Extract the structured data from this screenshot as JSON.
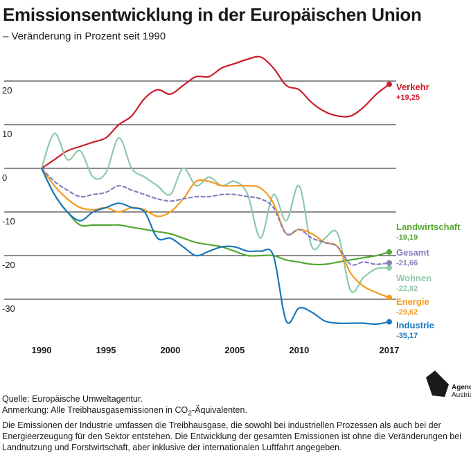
{
  "title": "Emissionsentwicklung in der Europäischen Union",
  "subtitle": "– Veränderung in Prozent seit 1990",
  "chart_data": {
    "type": "line",
    "title": "Emissionsentwicklung in der Europäischen Union",
    "subtitle": "– Veränderung in Prozent seit 1990",
    "xlabel": "",
    "ylabel": "",
    "xlim": [
      1990,
      2017
    ],
    "ylim": [
      -40,
      25
    ],
    "x_ticks": [
      "1990",
      "1995",
      "2000",
      "2005",
      "2010",
      "2017"
    ],
    "x_tick_values": [
      1990,
      1995,
      2000,
      2005,
      2010,
      2017
    ],
    "y_ticks": [
      "20",
      "10",
      "0",
      "-10",
      "-20",
      "-30"
    ],
    "y_tick_values": [
      20,
      10,
      0,
      -10,
      -20,
      -30
    ],
    "grid": true,
    "legend": "end-of-line labels",
    "series": [
      {
        "name": "Verkehr",
        "end_label": "+19,25",
        "color": "#cc1c2b",
        "dashed": false,
        "x": [
          1990,
          1991,
          1992,
          1993,
          1994,
          1995,
          1996,
          1997,
          1998,
          1999,
          2000,
          2001,
          2002,
          2003,
          2004,
          2005,
          2006,
          2007,
          2008,
          2009,
          2010,
          2011,
          2012,
          2013,
          2014,
          2015,
          2016,
          2017
        ],
        "y": [
          0,
          2,
          4,
          5,
          6,
          7,
          10,
          12,
          16,
          18,
          17,
          19,
          21,
          21,
          23,
          24,
          25,
          25.5,
          23,
          19,
          18,
          15,
          13,
          12,
          12,
          14,
          17,
          19.25
        ]
      },
      {
        "name": "Landwirtschaft",
        "end_label": "-19,19",
        "color": "#53a831",
        "dashed": false,
        "x": [
          1990,
          1991,
          1992,
          1993,
          1994,
          1995,
          1996,
          1997,
          1998,
          1999,
          2000,
          2001,
          2002,
          2003,
          2004,
          2005,
          2006,
          2007,
          2008,
          2009,
          2010,
          2011,
          2012,
          2013,
          2014,
          2015,
          2016,
          2017
        ],
        "y": [
          0,
          -6,
          -10,
          -13,
          -13,
          -13,
          -13,
          -13.5,
          -14,
          -14.5,
          -15,
          -16,
          -17,
          -17.5,
          -18,
          -19,
          -20,
          -20,
          -20,
          -21,
          -21.5,
          -22,
          -22,
          -21.5,
          -21,
          -20.5,
          -20,
          -19.19
        ]
      },
      {
        "name": "Gesamt",
        "end_label": "-21,66",
        "color": "#8480bc",
        "dashed": true,
        "x": [
          1990,
          1991,
          1992,
          1993,
          1994,
          1995,
          1996,
          1997,
          1998,
          1999,
          2000,
          2001,
          2002,
          2003,
          2004,
          2005,
          2006,
          2007,
          2008,
          2009,
          2010,
          2011,
          2012,
          2013,
          2014,
          2015,
          2016,
          2017
        ],
        "y": [
          0,
          -3,
          -5,
          -6.5,
          -6,
          -5.5,
          -4,
          -5,
          -6,
          -7,
          -7.5,
          -7,
          -6.5,
          -6.5,
          -6,
          -6,
          -6.5,
          -7,
          -9,
          -15,
          -14,
          -16,
          -17,
          -18,
          -22,
          -21.5,
          -22,
          -21.66
        ]
      },
      {
        "name": "Wohnen",
        "end_label": "-22,82",
        "color": "#8ccaaa",
        "dashed": false,
        "x": [
          1990,
          1991,
          1992,
          1993,
          1994,
          1995,
          1996,
          1997,
          1998,
          1999,
          2000,
          2001,
          2002,
          2003,
          2004,
          2005,
          2006,
          2007,
          2008,
          2009,
          2010,
          2011,
          2012,
          2013,
          2014,
          2015,
          2016,
          2017
        ],
        "y": [
          0,
          8,
          2,
          4,
          -2,
          -1,
          7,
          0,
          -2,
          -4,
          -6,
          0,
          -4,
          -2,
          -4,
          -3,
          -6,
          -16,
          -6,
          -12,
          -4,
          -18,
          -16,
          -15,
          -28,
          -25,
          -23,
          -22.82
        ]
      },
      {
        "name": "Energie",
        "end_label": "-29,62",
        "color": "#f39a1d",
        "dashed": false,
        "x": [
          1990,
          1991,
          1992,
          1993,
          1994,
          1995,
          1996,
          1997,
          1998,
          1999,
          2000,
          2001,
          2002,
          2003,
          2004,
          2005,
          2006,
          2007,
          2008,
          2009,
          2010,
          2011,
          2012,
          2013,
          2014,
          2015,
          2016,
          2017
        ],
        "y": [
          0,
          -4,
          -7,
          -9,
          -9.5,
          -9,
          -10,
          -9,
          -9.5,
          -11,
          -10,
          -7,
          -3,
          -3,
          -4,
          -4,
          -4,
          -4.5,
          -8,
          -15,
          -14,
          -15,
          -17,
          -18,
          -24,
          -27,
          -28.5,
          -29.62
        ]
      },
      {
        "name": "Industrie",
        "end_label": "-35,17",
        "color": "#1a77bb",
        "dashed": false,
        "x": [
          1990,
          1991,
          1992,
          1993,
          1994,
          1995,
          1996,
          1997,
          1998,
          1999,
          2000,
          2001,
          2002,
          2003,
          2004,
          2005,
          2006,
          2007,
          2008,
          2009,
          2010,
          2011,
          2012,
          2013,
          2014,
          2015,
          2016,
          2017
        ],
        "y": [
          0,
          -6,
          -10,
          -12,
          -10,
          -9,
          -8,
          -9,
          -10,
          -16,
          -16,
          -18,
          -20,
          -19,
          -18,
          -18,
          -19,
          -19,
          -20,
          -35,
          -32,
          -33,
          -35,
          -35.5,
          -35.5,
          -35.5,
          -35.7,
          -35.17
        ]
      }
    ]
  },
  "footer": {
    "source": "Quelle: Europäische Umweltagentur.",
    "note_pre": "Anmerkung: Alle Treibhausgasemissionen in CO",
    "note_sub": "2",
    "note_post": "-Äquivalenten.",
    "description": "Die Emissionen der Industrie umfassen die Treibhausgase, die sowohl  bei industriellen Prozessen als auch bei der Energieerzeugung für den Sektor entstehen. Die Entwicklung der gesamten Emissionen ist ohne die Veränderungen bei Landnutzung und Forstwirtschaft, aber inklusive der internationalen Luftfahrt angegeben."
  },
  "logo": {
    "line1": "Agenda",
    "line2": "Austria"
  }
}
